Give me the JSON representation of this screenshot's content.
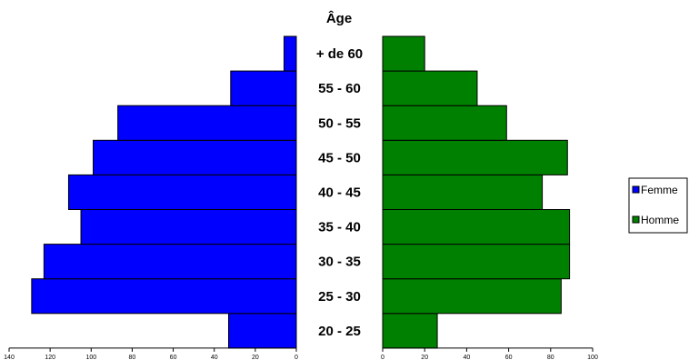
{
  "chart_data": {
    "type": "bar",
    "orientation": "horizontal",
    "layout": "population-pyramid",
    "center_title": "Âge",
    "categories": [
      "20 - 25",
      "25 - 30",
      "30 - 35",
      "35 - 40",
      "40 - 45",
      "45 - 50",
      "50 - 55",
      "55 - 60",
      "+ de 60"
    ],
    "series": [
      {
        "name": "Femme",
        "side": "left",
        "color": "#0000FF",
        "values": [
          33,
          129,
          123,
          105,
          111,
          99,
          87,
          32,
          6
        ]
      },
      {
        "name": "Homme",
        "side": "right",
        "color": "#008000",
        "values": [
          26,
          85,
          89,
          89,
          76,
          88,
          59,
          45,
          20
        ]
      }
    ],
    "left_axis": {
      "range": [
        140,
        0
      ],
      "ticks": [
        140,
        120,
        100,
        80,
        60,
        40,
        20,
        0
      ]
    },
    "right_axis": {
      "range": [
        0,
        100
      ],
      "ticks": [
        0,
        20,
        40,
        60,
        80,
        100
      ]
    },
    "grid": false,
    "legend_position": "right"
  }
}
